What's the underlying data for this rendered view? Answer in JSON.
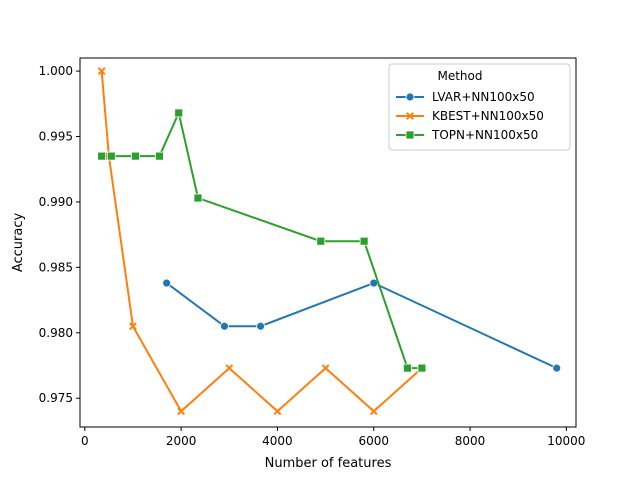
{
  "chart_data": {
    "type": "line",
    "title": "",
    "xlabel": "Number of features",
    "ylabel": "Accuracy",
    "xlim": [
      -100,
      10200
    ],
    "ylim": [
      0.9728,
      1.001
    ],
    "xticks": [
      0,
      2000,
      4000,
      6000,
      8000,
      10000
    ],
    "yticks": [
      0.975,
      0.98,
      0.985,
      0.99,
      0.995,
      1.0
    ],
    "grid": false,
    "legend": {
      "title": "Method",
      "placement": "top-right"
    },
    "series": [
      {
        "name": "LVAR+NN100x50",
        "color": "#1f77b4",
        "marker": "circle",
        "points": [
          [
            1700,
            0.9838
          ],
          [
            2900,
            0.9805
          ],
          [
            3650,
            0.9805
          ],
          [
            6000,
            0.9838
          ],
          [
            9800,
            0.9773
          ]
        ]
      },
      {
        "name": "KBEST+NN100x50",
        "color": "#ff7f0e",
        "marker": "x",
        "points": [
          [
            350,
            1.0
          ],
          [
            500,
            0.9935
          ],
          [
            1000,
            0.9805
          ],
          [
            2000,
            0.974
          ],
          [
            3000,
            0.9773
          ],
          [
            4000,
            0.974
          ],
          [
            5000,
            0.9773
          ],
          [
            6000,
            0.974
          ],
          [
            7000,
            0.9773
          ]
        ]
      },
      {
        "name": "TOPN+NN100x50",
        "color": "#2ca02c",
        "marker": "square",
        "points": [
          [
            350,
            0.9935
          ],
          [
            550,
            0.9935
          ],
          [
            1050,
            0.9935
          ],
          [
            1550,
            0.9935
          ],
          [
            1950,
            0.9968
          ],
          [
            2350,
            0.9903
          ],
          [
            4900,
            0.987
          ],
          [
            5800,
            0.987
          ],
          [
            6700,
            0.9773
          ],
          [
            7000,
            0.9773
          ]
        ]
      }
    ]
  }
}
